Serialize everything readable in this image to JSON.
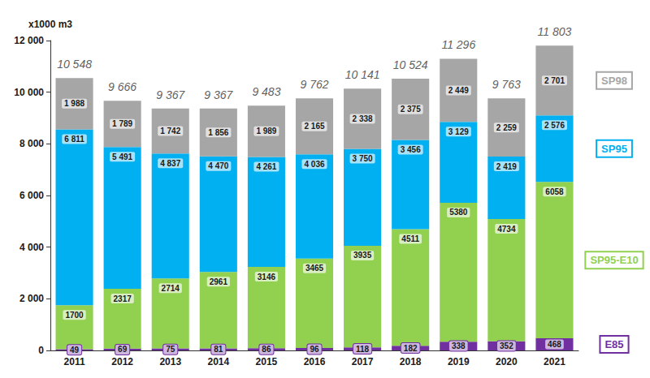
{
  "chart_data": {
    "type": "bar",
    "stacked": true,
    "ylabel": "x1000 m3",
    "categories": [
      "2011",
      "2012",
      "2013",
      "2014",
      "2015",
      "2016",
      "2017",
      "2018",
      "2019",
      "2020",
      "2021"
    ],
    "series": [
      {
        "name": "E85",
        "color": "#7030a0",
        "values": [
          49,
          69,
          75,
          81,
          86,
          96,
          118,
          182,
          338,
          352,
          468
        ]
      },
      {
        "name": "SP95-E10",
        "color": "#92d050",
        "values": [
          1700,
          2317,
          2714,
          2961,
          3146,
          3465,
          3935,
          4511,
          5380,
          4734,
          6058
        ]
      },
      {
        "name": "SP95",
        "color": "#00b0f0",
        "values": [
          6811,
          5491,
          4837,
          4470,
          4261,
          4036,
          3750,
          3456,
          3129,
          2419,
          2576
        ],
        "value_labels": [
          "6 811",
          "5 491",
          "4 837",
          "4 470",
          "4 261",
          "4 036",
          "3 750",
          "3 456",
          "3 129",
          "2 419",
          "2 576"
        ]
      },
      {
        "name": "SP98",
        "color": "#a6a6a6",
        "values": [
          1988,
          1789,
          1742,
          1856,
          1989,
          2165,
          2338,
          2375,
          2449,
          2259,
          2701
        ],
        "value_labels": [
          "1 988",
          "1 789",
          "1 742",
          "1 856",
          "1 989",
          "2 165",
          "2 338",
          "2 375",
          "2 449",
          "2 259",
          "2 701"
        ]
      }
    ],
    "totals": [
      10548,
      9666,
      9367,
      9367,
      9483,
      9762,
      10141,
      10524,
      11296,
      9763,
      11803
    ],
    "totals_labels": [
      "10 548",
      "9 666",
      "9 367",
      "9 367",
      "9 483",
      "9 762",
      "10 141",
      "10 524",
      "11 296",
      "9 763",
      "11 803"
    ],
    "ylim": [
      0,
      12000
    ],
    "yticks": [
      0,
      {
        "value": 2000,
        "label": "2 000"
      },
      {
        "value": 4000,
        "label": "4 000"
      },
      {
        "value": 6000,
        "label": "6 000"
      },
      {
        "value": 8000,
        "label": "8 000"
      },
      {
        "value": 10000,
        "label": "10 000"
      },
      {
        "value": 12000,
        "label": "12 000"
      }
    ],
    "grid": false,
    "data_labels": true,
    "legend": "right"
  }
}
